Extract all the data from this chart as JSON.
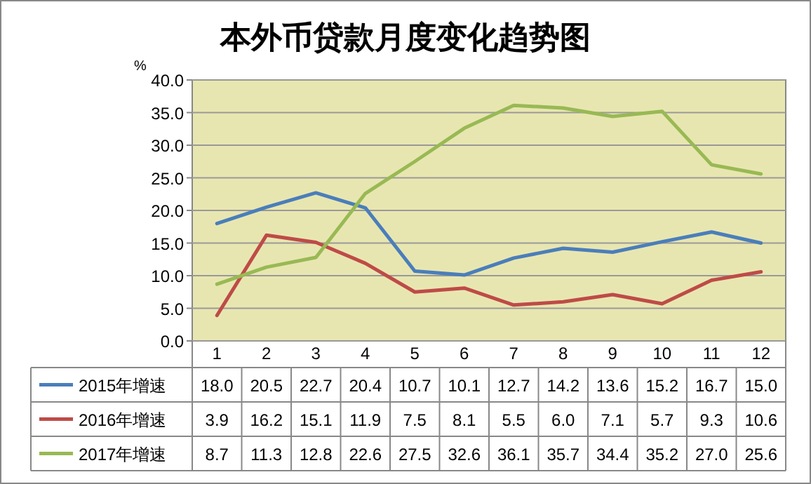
{
  "chart_data": {
    "type": "line",
    "title": "本外币贷款月度变化趋势图",
    "ylabel": "%",
    "categories": [
      "1",
      "2",
      "3",
      "4",
      "5",
      "6",
      "7",
      "8",
      "9",
      "10",
      "11",
      "12"
    ],
    "series": [
      {
        "name": "2015年增速",
        "color": "#4a7ebb",
        "values": [
          18.0,
          20.5,
          22.7,
          20.4,
          10.7,
          10.1,
          12.7,
          14.2,
          13.6,
          15.2,
          16.7,
          15.0
        ],
        "value_labels": [
          "18.0",
          "20.5",
          "22.7",
          "20.4",
          "10.7",
          "10.1",
          "12.7",
          "14.2",
          "13.6",
          "15.2",
          "16.7",
          "15.0"
        ]
      },
      {
        "name": "2016年增速",
        "color": "#be4b48",
        "values": [
          3.9,
          16.2,
          15.1,
          11.9,
          7.5,
          8.1,
          5.5,
          6.0,
          7.1,
          5.7,
          9.3,
          10.6
        ],
        "value_labels": [
          "3.9",
          "16.2",
          "15.1",
          "11.9",
          "7.5",
          "8.1",
          "5.5",
          "6.0",
          "7.1",
          "5.7",
          "9.3",
          "10.6"
        ]
      },
      {
        "name": "2017年增速",
        "color": "#98b954",
        "values": [
          8.7,
          11.3,
          12.8,
          22.6,
          27.5,
          32.6,
          36.1,
          35.7,
          34.4,
          35.2,
          27.0,
          25.6
        ],
        "value_labels": [
          "8.7",
          "11.3",
          "12.8",
          "22.6",
          "27.5",
          "32.6",
          "36.1",
          "35.7",
          "34.4",
          "35.2",
          "27.0",
          "25.6"
        ]
      }
    ],
    "ylim": [
      0,
      40
    ],
    "yticks": [
      {
        "value": 0,
        "label": "0.0"
      },
      {
        "value": 5,
        "label": "5.0"
      },
      {
        "value": 10,
        "label": "10.0"
      },
      {
        "value": 15,
        "label": "15.0"
      },
      {
        "value": 20,
        "label": "20.0"
      },
      {
        "value": 25,
        "label": "25.0"
      },
      {
        "value": 30,
        "label": "30.0"
      },
      {
        "value": 35,
        "label": "35.0"
      },
      {
        "value": 40,
        "label": "40.0"
      }
    ],
    "grid": "y",
    "legend": "bottom"
  }
}
